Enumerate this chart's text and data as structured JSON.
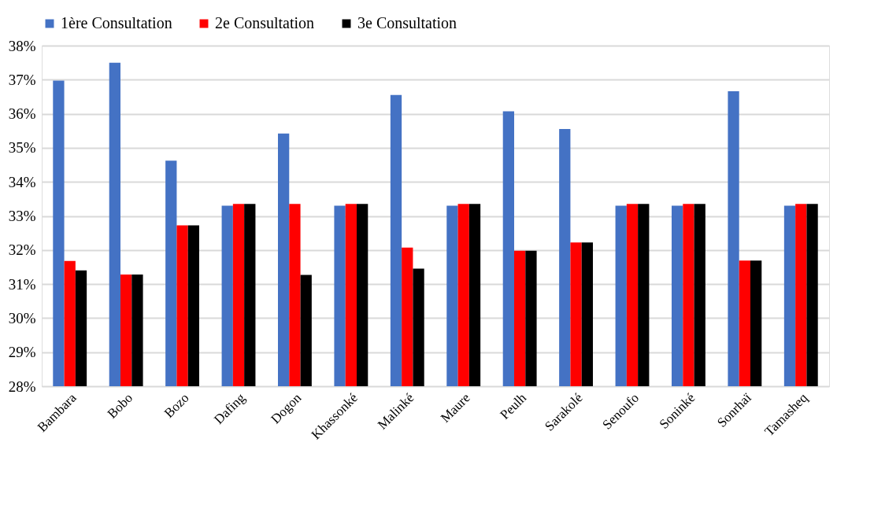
{
  "chart_data": {
    "type": "bar",
    "categories": [
      "Bambara",
      "Bobo",
      "Bozo",
      "Dafing",
      "Dogon",
      "Khassonké",
      "Malinké",
      "Maure",
      "Peulh",
      "Sarakolé",
      "Senoufo",
      "Soninké",
      "Sonrhaï",
      "Tamasheq"
    ],
    "series": [
      {
        "name": "1ère Consultation",
        "color": "#4472c4",
        "values": [
          36.97,
          37.5,
          34.62,
          33.3,
          35.42,
          33.3,
          36.55,
          33.3,
          36.07,
          35.55,
          33.3,
          33.3,
          36.66,
          33.3
        ]
      },
      {
        "name": "2e Consultation",
        "color": "#ff0000",
        "values": [
          31.68,
          31.28,
          32.72,
          33.35,
          33.35,
          33.35,
          32.07,
          33.35,
          31.98,
          32.22,
          33.35,
          33.35,
          31.69,
          33.35
        ]
      },
      {
        "name": "3e Consultation",
        "color": "#000000",
        "values": [
          31.4,
          31.28,
          32.72,
          33.35,
          31.27,
          33.35,
          31.45,
          33.35,
          31.98,
          32.22,
          33.35,
          33.35,
          31.69,
          33.35
        ]
      }
    ],
    "ylim": [
      28,
      38
    ],
    "yticks": [
      {
        "value": 28,
        "label": "28%"
      },
      {
        "value": 29,
        "label": "29%"
      },
      {
        "value": 30,
        "label": "30%"
      },
      {
        "value": 31,
        "label": "31%"
      },
      {
        "value": 32,
        "label": "32%"
      },
      {
        "value": 33,
        "label": "33%"
      },
      {
        "value": 34,
        "label": "34%"
      },
      {
        "value": 35,
        "label": "35%"
      },
      {
        "value": 36,
        "label": "36%"
      },
      {
        "value": 37,
        "label": "37%"
      },
      {
        "value": 38,
        "label": "38%"
      }
    ],
    "grid": "y",
    "legend": "top"
  }
}
